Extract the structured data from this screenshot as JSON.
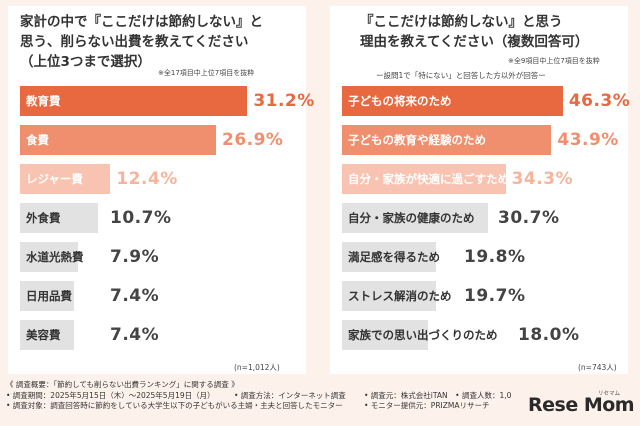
{
  "left": {
    "title_lines": [
      "家計の中で『ここだけは節約しない』と",
      "思う、削らない出費を教えてください",
      "（上位3つまで選択）"
    ],
    "note": "※全17項目中上位7項目を抜粋",
    "n": "(n=1,012人)"
  },
  "right": {
    "title_lines": [
      "『ここだけは節約しない』と思う",
      "理由を教えてください（複数回答可）"
    ],
    "note": "※全9項目中上位7項目を抜粋",
    "subnote": "ー設問1で「特にない」と回答した方以外が回答ー",
    "n": "(n=743人)"
  },
  "chart_data": [
    {
      "type": "bar",
      "orientation": "horizontal",
      "categories": [
        "教育費",
        "食費",
        "レジャー費",
        "外食費",
        "水道光熱費",
        "日用品費",
        "美容費"
      ],
      "values": [
        31.2,
        26.9,
        12.4,
        10.7,
        7.9,
        7.4,
        7.4
      ],
      "value_labels": [
        "31.2%",
        "26.9%",
        "12.4%",
        "10.7%",
        "7.9%",
        "7.4%",
        "7.4%"
      ],
      "colors": [
        "#e8683f",
        "#f08f6d",
        "#f8c3b1",
        "#e2e2e2",
        "#e2e2e2",
        "#e2e2e2",
        "#e2e2e2"
      ],
      "label_colors": [
        "#ffffff",
        "#ffffff",
        "#ffffff",
        "#333333",
        "#333333",
        "#333333",
        "#333333"
      ],
      "value_colors": [
        "#e8683f",
        "#f08f6d",
        "#f5b59c",
        "#444444",
        "#444444",
        "#444444",
        "#444444"
      ],
      "xlim": [
        0,
        35
      ],
      "grid": false
    },
    {
      "type": "bar",
      "orientation": "horizontal",
      "categories": [
        "子どもの将来のため",
        "子どもの教育や経験のため",
        "自分・家族が快適に過ごすため",
        "自分・家族の健康のため",
        "満足感を得るため",
        "ストレス解消のため",
        "家族での思い出づくりのため"
      ],
      "values": [
        46.3,
        43.9,
        34.3,
        30.7,
        19.8,
        19.7,
        18.0
      ],
      "value_labels": [
        "46.3%",
        "43.9%",
        "34.3%",
        "30.7%",
        "19.8%",
        "19.7%",
        "18.0%"
      ],
      "colors": [
        "#e8683f",
        "#f08f6d",
        "#f8c3b1",
        "#e2e2e2",
        "#e2e2e2",
        "#e2e2e2",
        "#e2e2e2"
      ],
      "label_colors": [
        "#ffffff",
        "#ffffff",
        "#ffffff",
        "#333333",
        "#333333",
        "#333333",
        "#333333"
      ],
      "value_colors": [
        "#e8683f",
        "#f08f6d",
        "#f5b59c",
        "#444444",
        "#444444",
        "#444444",
        "#444444"
      ],
      "xlim": [
        0,
        52
      ],
      "grid": false
    }
  ],
  "footer": {
    "line1": "《 調査概要：「節約しても削らない出費ランキング」に関する調査 》",
    "line2_left": "• 調査期間：2025年5月15日（木）～2025年5月19日（月）",
    "line2_mid": "• 調査方法：インターネット調査",
    "line2_right": "• 調査元：株式会社iTAN　• 調査人数：1,0",
    "line3_left": "• 調査対象：調査回答時に節約をしている大学生以下の子どもがいる主婦・主夫と回答したモニター",
    "line3_right": "• モニター提供元：PRIZMAリサーチ"
  },
  "logo": {
    "text": "Rese Mom",
    "sub": "リセマム"
  }
}
